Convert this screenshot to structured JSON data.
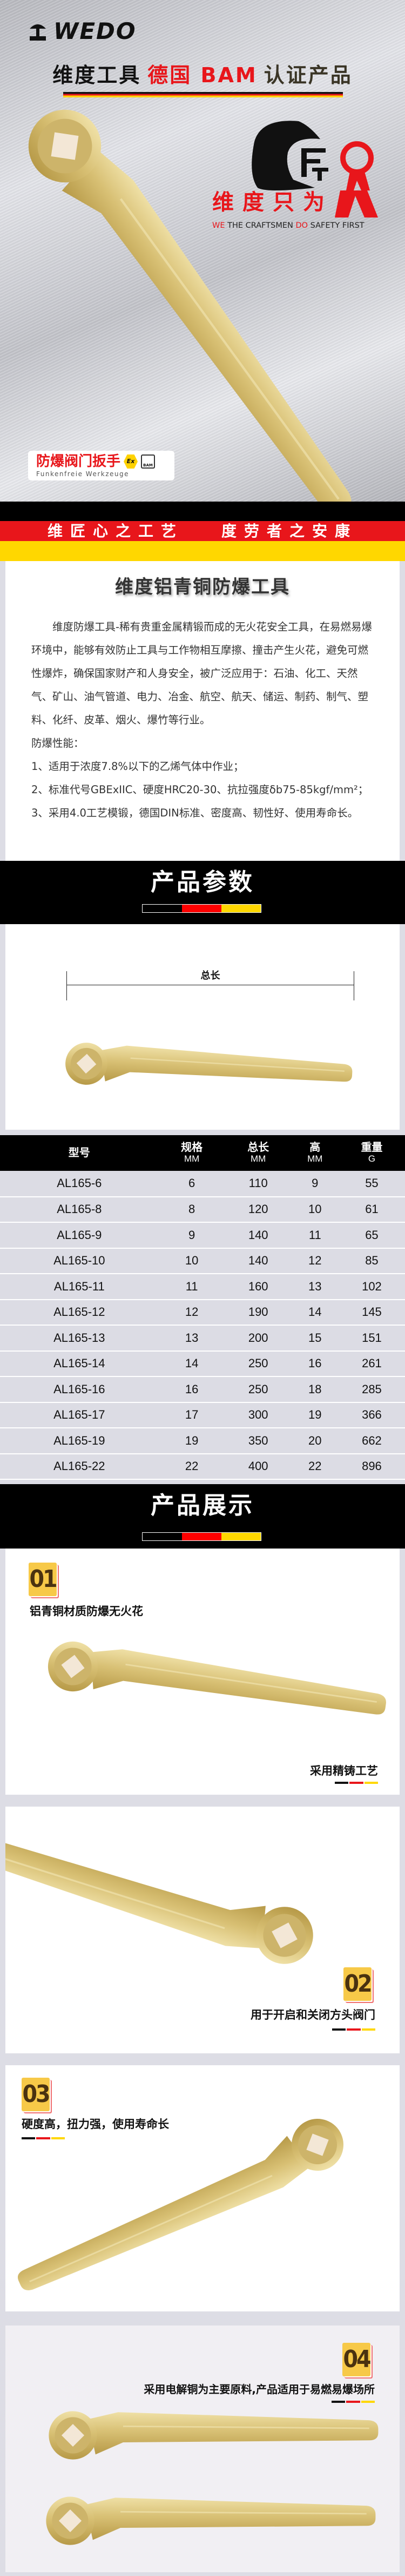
{
  "hero": {
    "logo_text": "WEDO",
    "headline": {
      "part1": "维度工具",
      "part2": "德国 BAM",
      "part3": "认证产品"
    },
    "brand_cn": "维度只为",
    "brand_logo_text": "WEDO",
    "brand_en": {
      "w1": "WE",
      "w2": " THE CRAFTSMEN ",
      "w3": "DO",
      "w4": " SAFETY FIRST"
    },
    "product_label": "防爆阀门扳手",
    "product_sub": "Funkenfreie Werkzeuge",
    "ex_mark": "Ex",
    "bam_mark": "BAM",
    "slogan_left": "维匠心之工艺",
    "slogan_right": "度劳者之安康"
  },
  "intro": {
    "title": "维度铝青铜防爆工具",
    "paragraph": "维度防爆工具-稀有贵重金属精锻而成的无火花安全工具，在易燃易爆环境中，能够有效防止工具与工作物相互摩擦、撞击产生火花，避免可燃性爆炸，确保国家财产和人身安全，被广泛应用于：石油、化工、天然气、矿山、油气管道、电力、冶金、航空、航天、储运、制药、制气、塑料、化纤、皮革、烟火、爆竹等行业。",
    "perf_heading": "防爆性能：",
    "perf_items": [
      "1、适用于浓度7.8%以下的乙烯气体中作业；",
      "2、标准代号GBExIIC、硬度HRC20-30、抗拉强度δb75-85kgf/mm²；",
      "3、采用4.0工艺模锻，德国DIN标准、密度高、韧性好、使用寿命长。"
    ]
  },
  "params": {
    "section_title": "产品参数",
    "dimension_label": "总长",
    "columns": [
      {
        "name": "型号",
        "unit": ""
      },
      {
        "name": "规格",
        "unit": "MM"
      },
      {
        "name": "总长",
        "unit": "MM"
      },
      {
        "name": "高",
        "unit": "MM"
      },
      {
        "name": "重量",
        "unit": "G"
      }
    ],
    "rows": [
      [
        "AL165-6",
        "6",
        "110",
        "9",
        "55"
      ],
      [
        "AL165-8",
        "8",
        "120",
        "10",
        "61"
      ],
      [
        "AL165-9",
        "9",
        "140",
        "11",
        "65"
      ],
      [
        "AL165-10",
        "10",
        "140",
        "12",
        "85"
      ],
      [
        "AL165-11",
        "11",
        "160",
        "13",
        "102"
      ],
      [
        "AL165-12",
        "12",
        "190",
        "14",
        "145"
      ],
      [
        "AL165-13",
        "13",
        "200",
        "15",
        "151"
      ],
      [
        "AL165-14",
        "14",
        "250",
        "16",
        "261"
      ],
      [
        "AL165-16",
        "16",
        "250",
        "18",
        "285"
      ],
      [
        "AL165-17",
        "17",
        "300",
        "19",
        "366"
      ],
      [
        "AL165-19",
        "19",
        "350",
        "20",
        "662"
      ],
      [
        "AL165-22",
        "22",
        "400",
        "22",
        "896"
      ]
    ]
  },
  "showcase": {
    "section_title": "产品展示",
    "cards": [
      {
        "badge": "01",
        "caption": "铝青铜材质防爆无火花",
        "caption2": "采用精铸工艺"
      },
      {
        "badge": "02",
        "caption": "用于开启和关闭方头阀门"
      },
      {
        "badge": "03",
        "caption": "硬度高，扭力强，使用寿命长"
      },
      {
        "badge": "04",
        "caption": "采用电解铜为主要原料,产品适用于易燃易爆场所"
      }
    ]
  },
  "colors": {
    "black": "#000000",
    "red": "#e8161b",
    "yellow": "#ffd700",
    "gold": "#d9c278",
    "badge": "#f7c948"
  }
}
